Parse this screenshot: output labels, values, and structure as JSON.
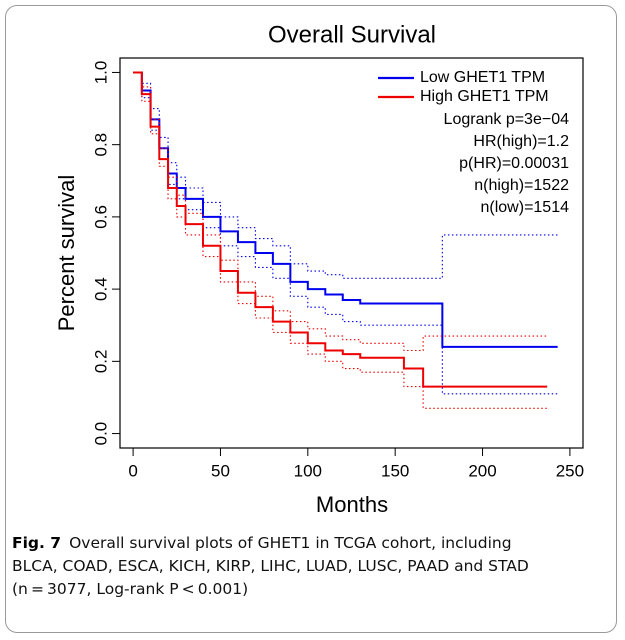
{
  "chart_data": {
    "type": "line",
    "step": true,
    "title": "Overall Survival",
    "x_label": "Months",
    "y_label": "Percent survival",
    "xlim": [
      -7.5,
      257.5
    ],
    "ylim": [
      -0.04,
      1.04
    ],
    "xticks": [
      0,
      50,
      100,
      150,
      200,
      250
    ],
    "yticks": [
      {
        "value": 0,
        "label": "0.0"
      },
      0.2,
      0.4,
      0.6,
      0.8,
      {
        "value": 1,
        "label": "1.0"
      }
    ],
    "legend": "top-right",
    "series": [
      {
        "name": "Low GHET1 TPM",
        "color": "#0000ee",
        "x": [
          0,
          5,
          10,
          15,
          20,
          25,
          30,
          40,
          50,
          60,
          70,
          80,
          90,
          100,
          110,
          120,
          130,
          150,
          177,
          243
        ],
        "values": [
          1.0,
          0.95,
          0.87,
          0.79,
          0.72,
          0.68,
          0.65,
          0.6,
          0.56,
          0.53,
          0.5,
          0.47,
          0.42,
          0.4,
          0.385,
          0.37,
          0.36,
          0.36,
          0.24,
          0.24
        ],
        "upper": [
          1.0,
          0.97,
          0.9,
          0.82,
          0.75,
          0.71,
          0.68,
          0.64,
          0.6,
          0.57,
          0.54,
          0.52,
          0.47,
          0.45,
          0.44,
          0.43,
          0.43,
          0.43,
          0.55,
          0.55
        ],
        "lower": [
          1.0,
          0.93,
          0.84,
          0.76,
          0.69,
          0.65,
          0.62,
          0.57,
          0.52,
          0.49,
          0.46,
          0.43,
          0.38,
          0.35,
          0.33,
          0.31,
          0.3,
          0.3,
          0.11,
          0.11
        ]
      },
      {
        "name": "High GHET1 TPM",
        "color": "#ee0000",
        "x": [
          0,
          5,
          10,
          15,
          20,
          25,
          30,
          40,
          50,
          60,
          70,
          80,
          90,
          100,
          110,
          120,
          130,
          140,
          155,
          166,
          237
        ],
        "values": [
          1.0,
          0.94,
          0.85,
          0.76,
          0.68,
          0.63,
          0.58,
          0.52,
          0.45,
          0.39,
          0.35,
          0.31,
          0.28,
          0.25,
          0.23,
          0.22,
          0.21,
          0.21,
          0.18,
          0.13,
          0.13
        ],
        "upper": [
          1.0,
          0.96,
          0.87,
          0.79,
          0.71,
          0.66,
          0.61,
          0.55,
          0.48,
          0.42,
          0.38,
          0.34,
          0.31,
          0.29,
          0.27,
          0.26,
          0.25,
          0.25,
          0.23,
          0.27,
          0.27
        ],
        "lower": [
          1.0,
          0.92,
          0.83,
          0.74,
          0.65,
          0.6,
          0.55,
          0.49,
          0.42,
          0.36,
          0.32,
          0.28,
          0.25,
          0.22,
          0.2,
          0.18,
          0.17,
          0.17,
          0.13,
          0.07,
          0.07
        ]
      }
    ],
    "annotations": [
      "Logrank p=3e−04",
      "HR(high)=1.2",
      "p(HR)=0.00031",
      "n(high)=1522",
      "n(low)=1514"
    ]
  },
  "figure_caption": {
    "label": "Fig. 7",
    "lines": [
      "Overall survival plots of GHET1 in TCGA cohort, including",
      "BLCA, COAD, ESCA, KICH, KIRP, LIHC, LUAD, LUSC, PAAD and STAD",
      "(n = 3077, Log-rank P < 0.001)"
    ]
  }
}
